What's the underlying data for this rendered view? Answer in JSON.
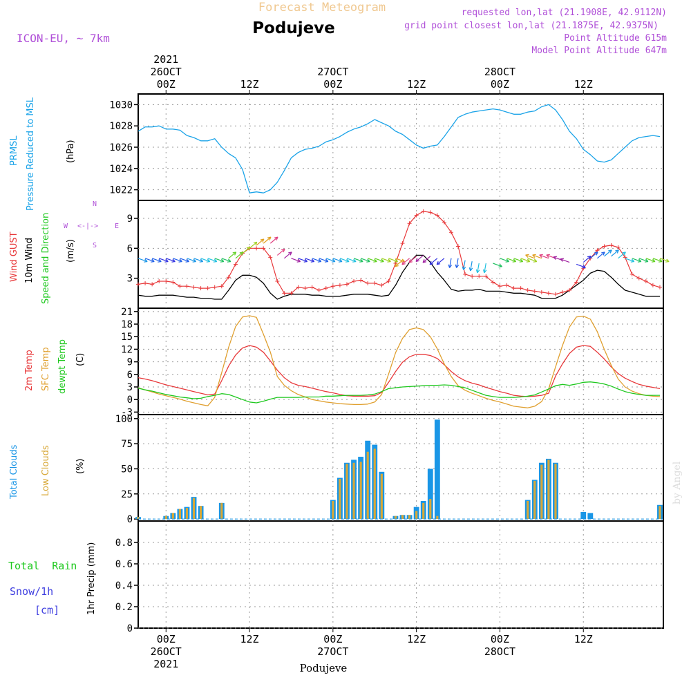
{
  "header": {
    "product": "Forecast Meteogram",
    "location": "Podujeve",
    "model": "ICON-EU, ~ 7km",
    "requested": "requested lon,lat (21.1908E, 42.9112N)",
    "gridpoint": "grid point closest lon,lat (21.1875E, 42.9375N)",
    "point_altitude": "Point Altitude 615m",
    "model_altitude": "Model Point Altitude 647m",
    "footer": "Podujeve",
    "watermark": "by Angel"
  },
  "time_axis": {
    "top": [
      {
        "h": 0,
        "lines": [
          "2021",
          "26OCT",
          "00Z"
        ]
      },
      {
        "h": 12,
        "lines": [
          "12Z"
        ]
      },
      {
        "h": 24,
        "lines": [
          "27OCT",
          "00Z"
        ]
      },
      {
        "h": 36,
        "lines": [
          "12Z"
        ]
      },
      {
        "h": 48,
        "lines": [
          "28OCT",
          "00Z"
        ]
      },
      {
        "h": 60,
        "lines": [
          "12Z"
        ]
      }
    ],
    "bottom": [
      {
        "h": 0,
        "lines": [
          "00Z",
          "26OCT",
          "2021"
        ]
      },
      {
        "h": 12,
        "lines": [
          "12Z"
        ]
      },
      {
        "h": 24,
        "lines": [
          "00Z",
          "27OCT"
        ]
      },
      {
        "h": 36,
        "lines": [
          "12Z"
        ]
      },
      {
        "h": 48,
        "lines": [
          "00Z",
          "28OCT"
        ]
      },
      {
        "h": 60,
        "lines": [
          "12Z"
        ]
      }
    ]
  },
  "panel_labels": {
    "pressure": [
      "PRMSL",
      "Pressure Reduced to MSL"
    ],
    "pressure_unit": "(hPa)",
    "wind": [
      "Wind GUST",
      "10m Wind",
      "Speed and Direction"
    ],
    "wind_unit": "(m/s)",
    "compass": {
      "n": "N",
      "s": "S",
      "w": "W",
      "e": "E",
      "arrows": "<-|->"
    },
    "temp": [
      "2m Temp",
      "SFC Temp",
      "dewpt Temp"
    ],
    "temp_unit": "(C)",
    "clouds": [
      "Total Clouds",
      "Low Clouds"
    ],
    "clouds_unit": "(%)",
    "precip_total": "Total  Rain",
    "precip_snow": "Snow/1h",
    "precip_cm": "[cm]",
    "precip_axis": "1hr Precip (mm)"
  },
  "colors": {
    "pressure": "#1aa3e8",
    "gust": "#e8383a",
    "wind": "#000000",
    "t2m": "#e8383a",
    "tsfc": "#e0a030",
    "dewpt": "#1ec81e",
    "total_clouds": "#1a96e6",
    "low_clouds": "#d8a838",
    "model_text": "#b050d8",
    "title_text": "#f0c890",
    "snow_text": "#4040e0"
  },
  "chart_data": [
    {
      "type": "line",
      "title": "PRMSL",
      "ylabel": "(hPa)",
      "ylim": [
        1021,
        1031
      ],
      "yticks": [
        1022,
        1024,
        1026,
        1028,
        1030
      ],
      "x_hours": [
        -4,
        -3,
        -2,
        -1,
        0,
        1,
        2,
        3,
        4,
        5,
        6,
        7,
        8,
        9,
        10,
        11,
        12,
        13,
        14,
        15,
        16,
        17,
        18,
        19,
        20,
        21,
        22,
        23,
        24,
        25,
        26,
        27,
        28,
        29,
        30,
        31,
        32,
        33,
        34,
        35,
        36,
        37,
        38,
        39,
        40,
        41,
        42,
        43,
        44,
        45,
        46,
        47,
        48,
        49,
        50,
        51,
        52,
        53,
        54,
        55,
        56,
        57,
        58,
        59,
        60,
        61,
        62,
        63,
        64,
        65,
        66,
        67,
        68,
        69,
        70,
        71
      ],
      "series": [
        {
          "name": "PRMSL",
          "values": [
            1027.5,
            1027.9,
            1027.9,
            1028.0,
            1027.7,
            1027.7,
            1027.6,
            1027.1,
            1026.9,
            1026.6,
            1026.6,
            1026.8,
            1026.0,
            1025.4,
            1025.0,
            1023.9,
            1021.7,
            1021.8,
            1021.7,
            1022.0,
            1022.7,
            1023.8,
            1025.0,
            1025.5,
            1025.8,
            1025.9,
            1026.1,
            1026.5,
            1026.7,
            1027.0,
            1027.4,
            1027.7,
            1027.9,
            1028.2,
            1028.6,
            1028.3,
            1028.0,
            1027.5,
            1027.2,
            1026.7,
            1026.2,
            1025.9,
            1026.1,
            1026.2,
            1027.0,
            1027.9,
            1028.8,
            1029.1,
            1029.3,
            1029.4,
            1029.5,
            1029.6,
            1029.5,
            1029.3,
            1029.1,
            1029.1,
            1029.3,
            1029.4,
            1029.8,
            1030.0,
            1029.5,
            1028.6,
            1027.5,
            1026.8,
            1025.8,
            1025.3,
            1024.7,
            1024.6,
            1024.8,
            1025.4,
            1026.0,
            1026.6,
            1026.9,
            1027.0,
            1027.1,
            1027.0
          ]
        }
      ]
    },
    {
      "type": "line",
      "title": "Wind GUST / 10m Wind",
      "ylabel": "(m/s)",
      "ylim": [
        0,
        10.8
      ],
      "yticks": [
        3,
        6,
        9
      ],
      "x_hours": [
        -4,
        -3,
        -2,
        -1,
        0,
        1,
        2,
        3,
        4,
        5,
        6,
        7,
        8,
        9,
        10,
        11,
        12,
        13,
        14,
        15,
        16,
        17,
        18,
        19,
        20,
        21,
        22,
        23,
        24,
        25,
        26,
        27,
        28,
        29,
        30,
        31,
        32,
        33,
        34,
        35,
        36,
        37,
        38,
        39,
        40,
        41,
        42,
        43,
        44,
        45,
        46,
        47,
        48,
        49,
        50,
        51,
        52,
        53,
        54,
        55,
        56,
        57,
        58,
        59,
        60,
        61,
        62,
        63,
        64,
        65,
        66,
        67,
        68,
        69,
        70,
        71
      ],
      "series": [
        {
          "name": "Wind GUST",
          "values": [
            2.4,
            2.5,
            2.4,
            2.7,
            2.7,
            2.6,
            2.2,
            2.2,
            2.1,
            2.0,
            2.0,
            2.1,
            2.2,
            3.1,
            4.4,
            5.5,
            6.0,
            6.0,
            6.0,
            5.1,
            2.7,
            1.5,
            1.5,
            2.1,
            2.0,
            2.1,
            1.8,
            2.0,
            2.2,
            2.3,
            2.4,
            2.7,
            2.8,
            2.5,
            2.5,
            2.3,
            2.7,
            4.5,
            6.5,
            8.5,
            9.3,
            9.7,
            9.6,
            9.3,
            8.6,
            7.6,
            6.2,
            3.4,
            3.2,
            3.2,
            3.2,
            2.6,
            2.2,
            2.3,
            2.0,
            2.0,
            1.8,
            1.7,
            1.6,
            1.5,
            1.4,
            1.6,
            1.8,
            2.6,
            4.0,
            5.0,
            5.8,
            6.2,
            6.3,
            6.1,
            5.1,
            3.4,
            3.0,
            2.7,
            2.3,
            2.1
          ]
        },
        {
          "name": "10m Wind",
          "values": [
            1.3,
            1.2,
            1.2,
            1.3,
            1.3,
            1.3,
            1.2,
            1.1,
            1.1,
            1.0,
            1.0,
            0.9,
            0.9,
            1.8,
            2.8,
            3.3,
            3.3,
            3.1,
            2.5,
            1.5,
            0.9,
            1.2,
            1.4,
            1.4,
            1.4,
            1.3,
            1.3,
            1.2,
            1.2,
            1.2,
            1.3,
            1.4,
            1.4,
            1.4,
            1.3,
            1.2,
            1.3,
            2.3,
            3.6,
            4.6,
            5.3,
            5.3,
            4.6,
            3.6,
            2.8,
            1.9,
            1.7,
            1.8,
            1.8,
            1.9,
            1.7,
            1.7,
            1.7,
            1.6,
            1.5,
            1.5,
            1.4,
            1.3,
            1.0,
            1.0,
            1.0,
            1.3,
            1.8,
            2.3,
            2.8,
            3.5,
            3.8,
            3.7,
            3.1,
            2.4,
            1.8,
            1.6,
            1.4,
            1.2,
            1.2,
            1.2
          ]
        }
      ],
      "arrow_speeds_ms": [
        5,
        5,
        5,
        5,
        5,
        5,
        5,
        5,
        5,
        5,
        5,
        5,
        5,
        5,
        5,
        5.5,
        6,
        6.3,
        6.5,
        6.5,
        5.3,
        5,
        5,
        5,
        5,
        5,
        5,
        5,
        5,
        5,
        5,
        5,
        5,
        5,
        5,
        5,
        5,
        5,
        4.8,
        5,
        5.2,
        5.3,
        5.2,
        5,
        5,
        5,
        5,
        4.8,
        4.7,
        4.5,
        4.5,
        4.5,
        5,
        5,
        5,
        5,
        5,
        5,
        5,
        5,
        5,
        4.8,
        4.6,
        4.4,
        4.6,
        5,
        5,
        5.2,
        5.2,
        5,
        5,
        5,
        5,
        5,
        5,
        5
      ]
    },
    {
      "type": "line",
      "title": "Temperature",
      "ylabel": "(C)",
      "ylim": [
        -3.6,
        21.8
      ],
      "yticks": [
        -3,
        0,
        3,
        6,
        9,
        12,
        15,
        18,
        21
      ],
      "x_hours": [
        -4,
        -3,
        -2,
        -1,
        0,
        1,
        2,
        3,
        4,
        5,
        6,
        7,
        8,
        9,
        10,
        11,
        12,
        13,
        14,
        15,
        16,
        17,
        18,
        19,
        20,
        21,
        22,
        23,
        24,
        25,
        26,
        27,
        28,
        29,
        30,
        31,
        32,
        33,
        34,
        35,
        36,
        37,
        38,
        39,
        40,
        41,
        42,
        43,
        44,
        45,
        46,
        47,
        48,
        49,
        50,
        51,
        52,
        53,
        54,
        55,
        56,
        57,
        58,
        59,
        60,
        61,
        62,
        63,
        64,
        65,
        66,
        67,
        68,
        69,
        70,
        71
      ],
      "series": [
        {
          "name": "2m Temp",
          "values": [
            5.2,
            4.9,
            4.5,
            4.0,
            3.5,
            3.1,
            2.7,
            2.3,
            1.9,
            1.5,
            1.1,
            1.3,
            4.5,
            8.0,
            10.6,
            12.3,
            12.9,
            12.5,
            11.3,
            9.2,
            7.0,
            5.2,
            4.0,
            3.4,
            3.1,
            2.7,
            2.3,
            1.9,
            1.6,
            1.2,
            0.9,
            0.8,
            0.8,
            0.8,
            0.9,
            1.7,
            4.1,
            6.7,
            8.9,
            10.2,
            10.8,
            10.8,
            10.5,
            9.8,
            8.3,
            6.7,
            5.4,
            4.5,
            3.9,
            3.5,
            2.9,
            2.4,
            1.9,
            1.5,
            1.0,
            0.8,
            0.7,
            0.8,
            1.0,
            1.5,
            5.6,
            8.5,
            11.0,
            12.5,
            12.9,
            12.7,
            11.3,
            9.7,
            7.8,
            6.2,
            5.1,
            4.3,
            3.6,
            3.2,
            2.9,
            2.6
          ]
        },
        {
          "name": "SFC Temp",
          "values": [
            2.8,
            2.3,
            1.8,
            1.3,
            0.9,
            0.5,
            0.1,
            -0.4,
            -0.8,
            -1.2,
            -1.5,
            0.5,
            6.4,
            12.5,
            17.4,
            19.7,
            20.0,
            19.6,
            15.6,
            11.3,
            5.5,
            3.4,
            2.1,
            1.2,
            0.6,
            0.0,
            -0.3,
            -0.6,
            -0.8,
            -1.0,
            -1.1,
            -1.2,
            -1.2,
            -1.1,
            -0.6,
            1.2,
            6.1,
            11.2,
            14.6,
            16.7,
            17.1,
            16.7,
            15.0,
            12.1,
            8.5,
            5.5,
            3.3,
            2.2,
            1.5,
            0.9,
            0.3,
            -0.2,
            -0.6,
            -1.1,
            -1.6,
            -1.8,
            -2.0,
            -1.6,
            -0.5,
            2.5,
            7.8,
            12.9,
            17.3,
            19.7,
            19.9,
            19.2,
            16.2,
            12.0,
            8.2,
            4.9,
            3.0,
            2.0,
            1.4,
            1.0,
            0.8,
            0.7
          ]
        },
        {
          "name": "dewpt Temp",
          "values": [
            2.7,
            2.3,
            2.0,
            1.6,
            1.2,
            0.9,
            0.6,
            0.4,
            0.2,
            0.3,
            0.7,
            1.0,
            1.4,
            1.2,
            0.6,
            0.0,
            -0.6,
            -0.8,
            -0.4,
            0.1,
            0.5,
            0.5,
            0.5,
            0.5,
            0.6,
            0.6,
            0.6,
            0.8,
            0.8,
            0.9,
            1.0,
            1.0,
            1.0,
            1.1,
            1.3,
            1.9,
            2.6,
            2.8,
            3.0,
            3.1,
            3.2,
            3.3,
            3.4,
            3.4,
            3.5,
            3.4,
            3.1,
            2.8,
            2.2,
            1.6,
            1.0,
            0.7,
            0.5,
            0.5,
            0.5,
            0.6,
            0.8,
            1.1,
            1.8,
            2.5,
            3.3,
            3.6,
            3.4,
            3.7,
            4.1,
            4.2,
            4.0,
            3.7,
            3.2,
            2.5,
            1.9,
            1.5,
            1.2,
            1.0,
            1.0,
            1.0
          ]
        }
      ]
    },
    {
      "type": "bar",
      "title": "Clouds",
      "ylabel": "(%)",
      "ylim": [
        -2,
        104
      ],
      "yticks": [
        0,
        25,
        50,
        75,
        100
      ],
      "x_hours": [
        -4,
        -3,
        -2,
        -1,
        0,
        1,
        2,
        3,
        4,
        5,
        6,
        7,
        8,
        9,
        10,
        11,
        12,
        13,
        14,
        15,
        16,
        17,
        18,
        19,
        20,
        21,
        22,
        23,
        24,
        25,
        26,
        27,
        28,
        29,
        30,
        31,
        32,
        33,
        34,
        35,
        36,
        37,
        38,
        39,
        40,
        41,
        42,
        43,
        44,
        45,
        46,
        47,
        48,
        49,
        50,
        51,
        52,
        53,
        54,
        55,
        56,
        57,
        58,
        59,
        60,
        61,
        62,
        63,
        64,
        65,
        66,
        67,
        68,
        69,
        70,
        71
      ],
      "series": [
        {
          "name": "Total Clouds",
          "values": [
            2,
            0,
            0,
            0,
            3,
            6,
            10,
            12,
            22,
            13,
            0,
            0,
            16,
            0,
            0,
            0,
            0,
            0,
            0,
            0,
            0,
            0,
            0,
            0,
            0,
            0,
            0,
            0,
            19,
            41,
            56,
            59,
            62,
            78,
            74,
            47,
            0,
            3,
            4,
            4,
            12,
            18,
            50,
            99,
            0,
            0,
            0,
            0,
            0,
            0,
            0,
            0,
            0,
            0,
            0,
            0,
            19,
            39,
            56,
            60,
            56,
            0,
            0,
            0,
            7,
            6,
            0,
            0,
            0,
            0,
            0,
            0,
            0,
            0,
            0,
            14
          ]
        },
        {
          "name": "Low Clouds",
          "values": [
            2,
            0,
            0,
            0,
            3,
            6,
            10,
            11,
            21,
            13,
            0,
            0,
            16,
            0,
            0,
            0,
            0,
            0,
            0,
            0,
            0,
            0,
            0,
            0,
            0,
            0,
            0,
            0,
            18,
            40,
            55,
            56,
            57,
            67,
            70,
            45,
            0,
            3,
            4,
            4,
            8,
            16,
            20,
            3,
            0,
            0,
            0,
            0,
            0,
            0,
            0,
            0,
            0,
            0,
            0,
            0,
            18,
            38,
            54,
            59,
            55,
            0,
            0,
            0,
            0,
            0,
            0,
            0,
            0,
            0,
            0,
            0,
            0,
            0,
            0,
            13
          ]
        }
      ]
    },
    {
      "type": "bar",
      "title": "1hr Precip",
      "ylabel": "1hr Precip (mm)",
      "ylim": [
        0,
        1.0
      ],
      "yticks": [
        0,
        0.2,
        0.4,
        0.6,
        0.8
      ],
      "series": [
        {
          "name": "Total Rain",
          "values": []
        },
        {
          "name": "Snow/1h",
          "values": []
        }
      ]
    }
  ]
}
